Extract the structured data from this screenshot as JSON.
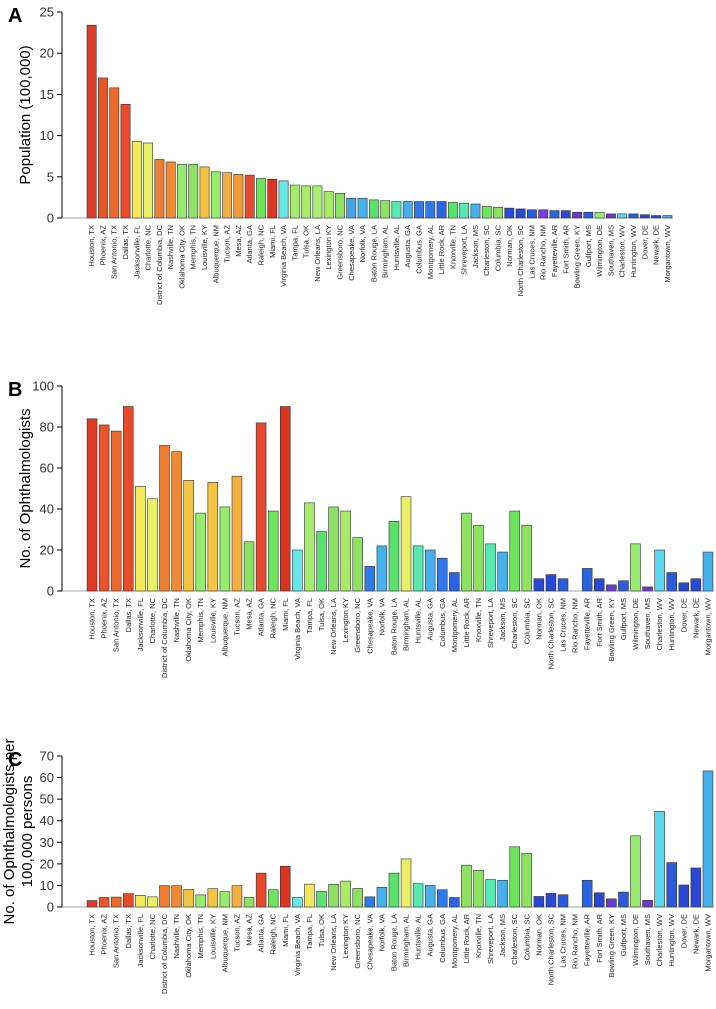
{
  "chart_data": [
    {
      "type": "bar",
      "panel_label": "A",
      "ylabel": "Population (100,000)",
      "ylim": [
        0,
        25
      ],
      "yticks": [
        0,
        5,
        10,
        15,
        20,
        25
      ],
      "categories": [
        "Houston, TX",
        "Phoenix, AZ",
        "San Antonio, TX",
        "Dallas, TX",
        "Jacksonville, FL",
        "Charlotte, NC",
        "District of Columbia, DC",
        "Nashville, TN",
        "Oklahoma City, OK",
        "Memphis, TN",
        "Louisville, KY",
        "Albuquerque, NM",
        "Tucson, AZ",
        "Mesa, AZ",
        "Atlanta, GA",
        "Raleigh, NC",
        "Miami, FL",
        "Virginia Beach, VA",
        "Tampa, FL",
        "Tulsa, OK",
        "New Orleans, LA",
        "Lexington KY",
        "Greensboro, NC",
        "Chesapeake, VA",
        "Norfolk, VA",
        "Baton Rouge, LA",
        "Birmingham, AL",
        "Huntsville, AL",
        "Augusta, GA",
        "Columbus, GA",
        "Montgomery, AL",
        "Little Rock, AR",
        "Knoxville, TN",
        "Shreveport, LA",
        "Jackson, MS",
        "Charleston, SC",
        "Columbia, SC",
        "Norman, OK",
        "North Charleston, SC",
        "Las Cruces, NM",
        "Rio Rancho, NM",
        "Fayetteville, AR",
        "Fort Smith, AR",
        "Bowling Green, KY",
        "Gulfport, MS",
        "Wilmington, DE",
        "Southaven, MS",
        "Charleston, WV",
        "Huntington, WV",
        "Dover, DE",
        "Newark, DE",
        "Morgantown, WV"
      ],
      "values": [
        23.4,
        17.0,
        15.8,
        13.8,
        9.3,
        9.1,
        7.1,
        6.8,
        6.5,
        6.5,
        6.2,
        5.6,
        5.5,
        5.3,
        5.2,
        4.8,
        4.7,
        4.5,
        4.0,
        3.9,
        3.9,
        3.2,
        3.0,
        2.4,
        2.4,
        2.2,
        2.1,
        2.0,
        2.0,
        2.0,
        2.0,
        2.0,
        1.9,
        1.8,
        1.7,
        1.4,
        1.3,
        1.2,
        1.1,
        1.0,
        1.0,
        0.9,
        0.9,
        0.7,
        0.7,
        0.7,
        0.5,
        0.5,
        0.5,
        0.4,
        0.3,
        0.3
      ],
      "colors": [
        "#e03a26",
        "#e8552a",
        "#ec6a2e",
        "#e84a2a",
        "#f2e85a",
        "#eaee66",
        "#ec7f33",
        "#ee8a36",
        "#96ec6c",
        "#8de264",
        "#f2c444",
        "#96ec6c",
        "#f2b043",
        "#f39b3b",
        "#e64a2e",
        "#6ee65b",
        "#dd3322",
        "#66e8e6",
        "#a4ec6a",
        "#a4ec6a",
        "#aaee72",
        "#a8ec66",
        "#8de264",
        "#46a2e8",
        "#46b0ea",
        "#5ae36a",
        "#8de264",
        "#58e8b4",
        "#46b0ea",
        "#2f7ae6",
        "#2f7ae6",
        "#2a64e2",
        "#5ae36a",
        "#58e8b4",
        "#46b0ea",
        "#6ee65b",
        "#8de264",
        "#2a48d6",
        "#2a48d6",
        "#2a5ae0",
        "#7a3ae0",
        "#2a64e2",
        "#2a48d6",
        "#6a3ad6",
        "#2a5ae0",
        "#96ec6c",
        "#6a3ad6",
        "#5ad6ee",
        "#2a5ae0",
        "#2a48d6",
        "#2a48d6",
        "#46b0ea"
      ]
    },
    {
      "type": "bar",
      "panel_label": "B",
      "ylabel": "No. of Ophthalmologists",
      "ylim": [
        0,
        100
      ],
      "yticks": [
        0,
        20,
        40,
        60,
        80,
        100
      ],
      "categories": [
        "Houston, TX",
        "Phoenix, AZ",
        "San Antonio, TX",
        "Dallas, TX",
        "Jacksonville, FL",
        "Charlotte, NC",
        "District of Columbia, DC",
        "Nashville, TN",
        "Oklahoma City, OK",
        "Memphis, TN",
        "Louisville, KY",
        "Albuquerque, NM",
        "Tucson, AZ",
        "Mesa, AZ",
        "Atlanta, GA",
        "Raleigh, NC",
        "Miami, FL",
        "Virginia Beach, VA",
        "Tampa, FL",
        "Tulsa, OK",
        "New Orleans, LA",
        "Lexington KY",
        "Greensboro, NC",
        "Chesapeake, VA",
        "Norfolk, VA",
        "Baton Rouge, LA",
        "Birmingham, AL",
        "Huntsville, AL",
        "Augusta, GA",
        "Columbus, GA",
        "Montgomery, AL",
        "Little Rock, AR",
        "Knoxville, TN",
        "Shreveport, LA",
        "Jackson, MS",
        "Charleston, SC",
        "Columbia, SC",
        "Norman, OK",
        "North Charleston, SC",
        "Las Cruces, NM",
        "Rio Rancho, NM",
        "Fayetteville, AR",
        "Fort Smith, AR",
        "Bowling Green, KY",
        "Gulfport, MS",
        "Wilmington, DE",
        "Southaven, MS",
        "Charleston, WV",
        "Huntington, WV",
        "Dover, DE",
        "Newark, DE",
        "Morgantown, WV"
      ],
      "values": [
        84,
        81,
        78,
        90,
        51,
        45,
        71,
        68,
        54,
        38,
        53,
        41,
        56,
        24,
        82,
        39,
        90,
        20,
        43,
        29,
        41,
        39,
        26,
        12,
        22,
        34,
        46,
        22,
        20,
        16,
        9,
        38,
        32,
        23,
        19,
        39,
        32,
        6,
        8,
        6,
        0,
        11,
        6,
        3,
        5,
        23,
        2,
        20,
        9,
        4,
        6,
        19
      ],
      "colors": [
        "#e03a26",
        "#e8552a",
        "#ec6a2e",
        "#e84a2a",
        "#f2e85a",
        "#eaee66",
        "#ec7f33",
        "#ee8a36",
        "#f2c444",
        "#96ec6c",
        "#f2c444",
        "#96ec6c",
        "#f2b043",
        "#8de264",
        "#e64a2e",
        "#6ee65b",
        "#dd3322",
        "#66e8e6",
        "#a4ec6a",
        "#5ae36a",
        "#8de264",
        "#a8ec66",
        "#8de264",
        "#2f7ae6",
        "#46b0ea",
        "#5ae36a",
        "#eaee66",
        "#58e8b4",
        "#46b0ea",
        "#2f7ae6",
        "#2a64e2",
        "#8de264",
        "#8de264",
        "#58e8b4",
        "#46b0ea",
        "#6ee65b",
        "#8de264",
        "#2a48d6",
        "#2a48d6",
        "#2a5ae0",
        "#7a3ae0",
        "#2a64e2",
        "#2a48d6",
        "#6a3ad6",
        "#2a5ae0",
        "#96ec6c",
        "#6a3ad6",
        "#5ad6ee",
        "#2a5ae0",
        "#2a48d6",
        "#2a48d6",
        "#46b0ea"
      ]
    },
    {
      "type": "bar",
      "panel_label": "C",
      "ylabel_lines": [
        "No. of Ophthalmologists per",
        "100,000 persons"
      ],
      "ylim": [
        0,
        70
      ],
      "yticks": [
        0,
        10,
        20,
        30,
        40,
        50,
        60,
        70
      ],
      "categories": [
        "Houston, TX",
        "Phoenix, AZ",
        "San Antonio, TX",
        "Dallas, TX",
        "Jacksonville, FL",
        "Charlotte, NC",
        "District of Columbia, DC",
        "Nashville, TN",
        "Oklahoma City, OK",
        "Memphis, TN",
        "Louisville, KY",
        "Albuquerque, NM",
        "Tucson, AZ",
        "Mesa, AZ",
        "Atlanta, GA",
        "Raleigh, NC",
        "Miami, FL",
        "Virginia Beach, VA",
        "Tampa, FL",
        "Tulsa, OK",
        "New Orleans, LA",
        "Lexington KY",
        "Greensboro, NC",
        "Chesapeake, VA",
        "Norfolk, VA",
        "Baton Rouge, LA",
        "Birmingham, AL",
        "Huntsville, AL",
        "Augusta, GA",
        "Columbus, GA",
        "Montgomery, AL",
        "Little Rock, AR",
        "Knoxville, TN",
        "Shreveport, LA",
        "Jackson, MS",
        "Charleston, SC",
        "Columbia, SC",
        "Norman, OK",
        "North Charleston, SC",
        "Las Cruces, NM",
        "Rio Rancho, NM",
        "Fayetteville, AR",
        "Fort Smith, AR",
        "Bowling Green, KY",
        "Gulfport, MS",
        "Wilmington, DE",
        "Southaven, MS",
        "Charleston, WV",
        "Huntington, WV",
        "Dover, DE",
        "Newark, DE",
        "Morgantown, WV"
      ],
      "values": [
        3.0,
        4.4,
        4.6,
        6.2,
        5.4,
        4.7,
        9.9,
        9.9,
        8.2,
        5.6,
        8.5,
        7.1,
        9.9,
        4.4,
        15.7,
        8.0,
        18.9,
        4.4,
        10.6,
        7.2,
        10.5,
        12.0,
        8.6,
        4.7,
        9.1,
        15.7,
        22.3,
        10.8,
        10.0,
        8.0,
        4.4,
        19.4,
        17.0,
        12.7,
        12.4,
        27.9,
        24.8,
        4.9,
        6.3,
        5.7,
        0.0,
        12.4,
        6.6,
        3.8,
        6.9,
        33.0,
        3.1,
        44.3,
        20.6,
        10.2,
        18.1,
        63.1
      ],
      "colors": [
        "#e03a26",
        "#e8552a",
        "#ec6a2e",
        "#e84a2a",
        "#f2e85a",
        "#eaee66",
        "#ec7f33",
        "#ee8a36",
        "#f2c444",
        "#96ec6c",
        "#f2c444",
        "#96ec6c",
        "#f2b043",
        "#8de264",
        "#e64a2e",
        "#6ee65b",
        "#dd3322",
        "#66e8e6",
        "#f2e85a",
        "#5ae36a",
        "#8de264",
        "#a8ec66",
        "#8de264",
        "#2f7ae6",
        "#46b0ea",
        "#5ae36a",
        "#eaee66",
        "#58e8b4",
        "#46b0ea",
        "#2f7ae6",
        "#2a64e2",
        "#8de264",
        "#8de264",
        "#58e8b4",
        "#46b0ea",
        "#6ee65b",
        "#8de264",
        "#2a48d6",
        "#2a48d6",
        "#2a5ae0",
        "#7a3ae0",
        "#2a64e2",
        "#2a48d6",
        "#6a3ad6",
        "#2a5ae0",
        "#96ec6c",
        "#6a3ad6",
        "#5ad6ee",
        "#2a5ae0",
        "#2a48d6",
        "#2a48d6",
        "#46b0ea"
      ]
    }
  ]
}
